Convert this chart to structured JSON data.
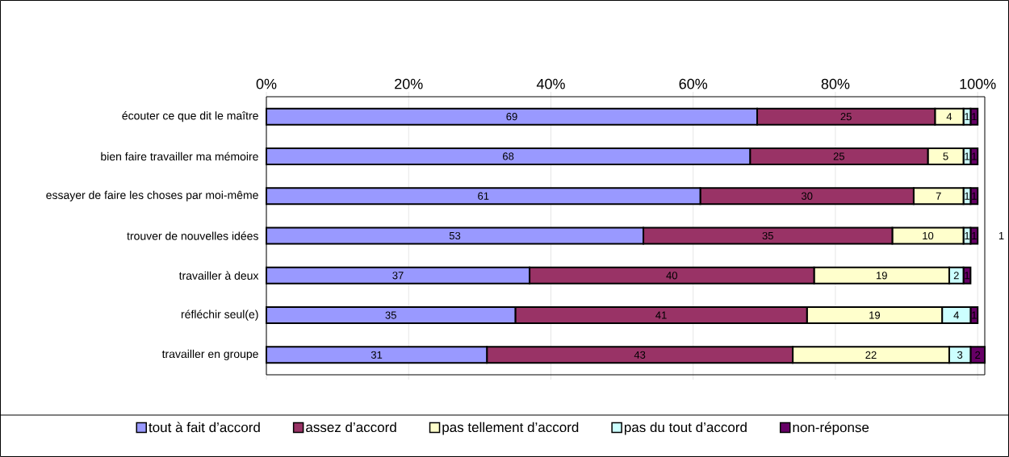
{
  "chart_data": {
    "type": "bar",
    "orientation": "horizontal",
    "stacked": true,
    "legend": "bottom",
    "grid": "x",
    "data_labels": true,
    "categories": [
      "écouter ce que dit le maître",
      "bien faire travailler ma mémoire",
      "essayer de faire les choses par moi-même",
      "trouver de nouvelles idées",
      "travailler à deux",
      "réfléchir seul(e)",
      "travailler en groupe"
    ],
    "series": [
      {
        "name": "tout à fait d’accord",
        "color": "#9999ff",
        "values": [
          69,
          68,
          61,
          53,
          37,
          35,
          31
        ]
      },
      {
        "name": "assez d’accord",
        "color": "#993366",
        "values": [
          25,
          25,
          30,
          35,
          40,
          41,
          43
        ]
      },
      {
        "name": "pas tellement d’accord",
        "color": "#ffffcc",
        "values": [
          4,
          5,
          7,
          10,
          19,
          19,
          22
        ]
      },
      {
        "name": "pas du tout d’accord",
        "color": "#ccffff",
        "values": [
          1,
          1,
          1,
          1,
          2,
          4,
          3
        ]
      },
      {
        "name": "non-réponse",
        "color": "#660066",
        "values": [
          1,
          1,
          1,
          1,
          1,
          1,
          2
        ]
      }
    ],
    "xlim": [
      0,
      101
    ],
    "xticks": [
      {
        "value": 0,
        "label": "0%"
      },
      {
        "value": 20,
        "label": "20%"
      },
      {
        "value": 40,
        "label": "40%"
      },
      {
        "value": 60,
        "label": "60%"
      },
      {
        "value": 80,
        "label": "80%"
      },
      {
        "value": 100,
        "label": "100%"
      }
    ],
    "annotations": [
      "1"
    ]
  }
}
